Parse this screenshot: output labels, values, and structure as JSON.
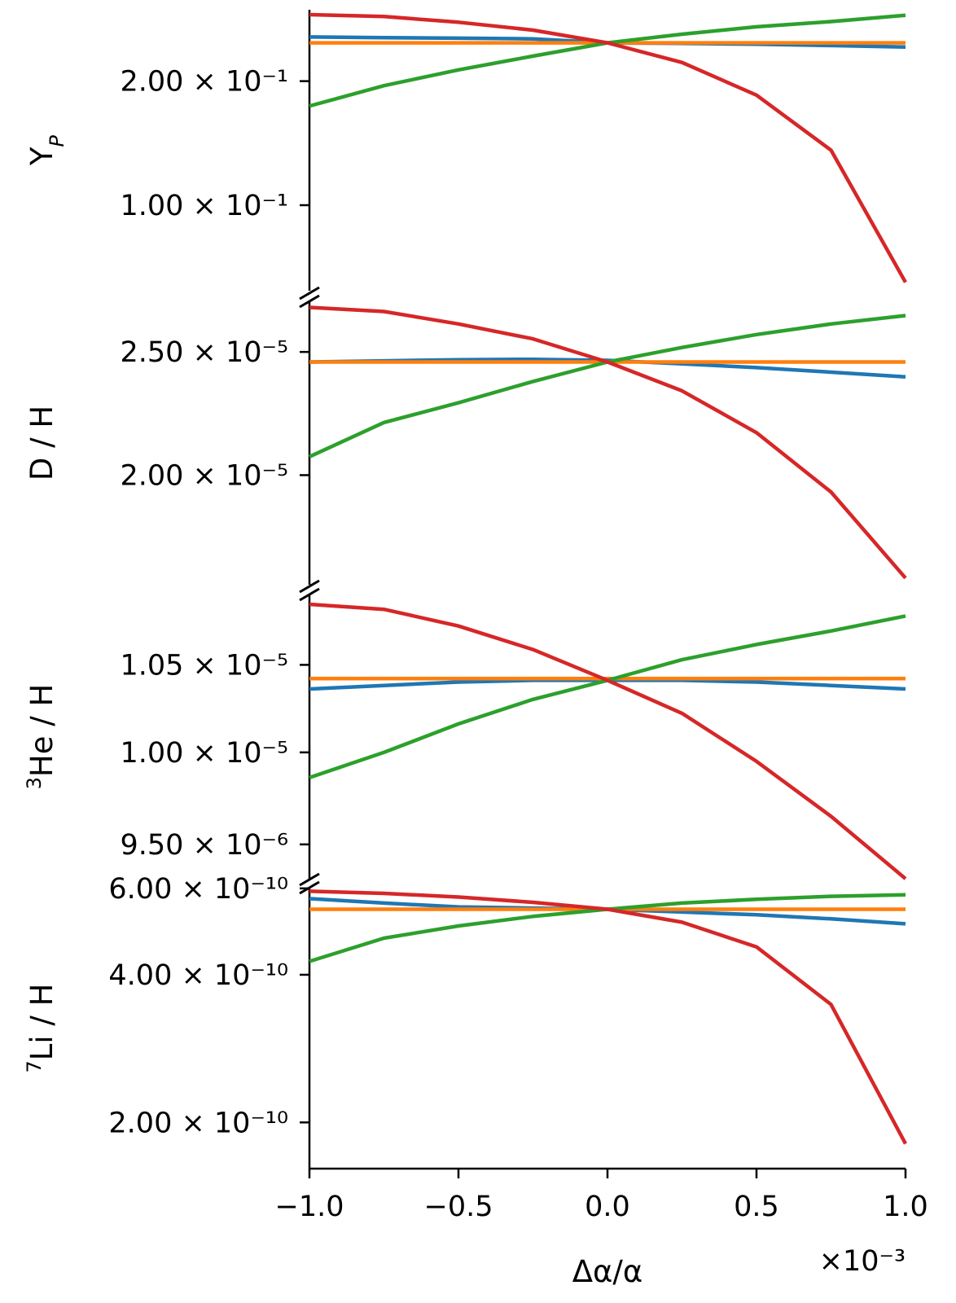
{
  "chart_data": {
    "type": "line",
    "x_label": "Δα/α",
    "x_multiplier": "×10⁻³",
    "x_range": [
      -1.0,
      1.0
    ],
    "x_ticks": [
      "−1.0",
      "−0.5",
      "0.0",
      "0.5",
      "1.0"
    ],
    "x_tick_values": [
      -1.0,
      -0.5,
      0.0,
      0.5,
      1.0
    ],
    "colors": {
      "blue": "#1f77b4",
      "orange": "#ff7f0e",
      "green": "#2ca02c",
      "red": "#d62728"
    },
    "x": [
      -1.0,
      -0.75,
      -0.5,
      -0.25,
      0.0,
      0.25,
      0.5,
      0.75,
      1.0
    ],
    "panels": [
      {
        "ylabel": "Y",
        "ylabel_sub": "P",
        "ylim": [
          0.062,
          0.298
        ],
        "y_ticks": [
          {
            "value": 0.2,
            "label": "2.00 × 10⁻¹"
          },
          {
            "value": 0.1,
            "label": "1.00 × 10⁻¹"
          }
        ],
        "series": [
          {
            "color": "#1f77b4",
            "values": [
              0.256,
              0.2551,
              0.2542,
              0.2533,
              0.2477,
              0.247,
              0.2458,
              0.244,
              0.242
            ]
          },
          {
            "color": "#ff7f0e",
            "values": [
              0.2477,
              0.2477,
              0.2477,
              0.2477,
              0.2477,
              0.2477,
              0.2477,
              0.2477,
              0.2477
            ]
          },
          {
            "color": "#2ca02c",
            "values": [
              0.174,
              0.195,
              0.213,
              0.23,
              0.2477,
              0.26,
              0.271,
              0.279,
              0.289
            ]
          },
          {
            "color": "#d62728",
            "values": [
              0.29,
              0.287,
              0.278,
              0.266,
              0.2477,
              0.222,
              0.185,
              0.136,
              0.065
            ]
          }
        ]
      },
      {
        "ylabel": "D / H",
        "ylim": [
          1.64e-05,
          2.74e-05
        ],
        "y_ticks": [
          {
            "value": 2.5e-05,
            "label": "2.50 × 10⁻⁵"
          },
          {
            "value": 2e-05,
            "label": "2.00 × 10⁻⁵"
          }
        ],
        "series": [
          {
            "color": "#1f77b4",
            "values": [
              2.455e-05,
              2.46e-05,
              2.465e-05,
              2.467e-05,
              2.462e-05,
              2.447e-05,
              2.43e-05,
              2.41e-05,
              2.39e-05
            ]
          },
          {
            "color": "#ff7f0e",
            "values": [
              2.455e-05,
              2.455e-05,
              2.455e-05,
              2.455e-05,
              2.455e-05,
              2.455e-05,
              2.455e-05,
              2.455e-05,
              2.455e-05
            ]
          },
          {
            "color": "#2ca02c",
            "values": [
              2.068e-05,
              2.2e-05,
              2.28e-05,
              2.37e-05,
              2.455e-05,
              2.52e-05,
              2.58e-05,
              2.63e-05,
              2.67e-05
            ]
          },
          {
            "color": "#d62728",
            "values": [
              2.71e-05,
              2.69e-05,
              2.63e-05,
              2.56e-05,
              2.455e-05,
              2.33e-05,
              2.16e-05,
              1.94e-05,
              1.66e-05
            ]
          }
        ]
      },
      {
        "ylabel": "He / H",
        "ylabel_sup": "3",
        "ylim": [
          9.32e-06,
          1.092e-05
        ],
        "y_ticks": [
          {
            "value": 1.05e-05,
            "label": "1.05 × 10⁻⁵"
          },
          {
            "value": 1e-05,
            "label": "1.00 × 10⁻⁵"
          },
          {
            "value": 9.5e-06,
            "label": "9.50 × 10⁻⁶"
          }
        ],
        "series": [
          {
            "color": "#1f77b4",
            "values": [
              1.036e-05,
              1.038e-05,
              1.04e-05,
              1.041e-05,
              1.041e-05,
              1.041e-05,
              1.04e-05,
              1.038e-05,
              1.036e-05
            ]
          },
          {
            "color": "#ff7f0e",
            "values": [
              1.042e-05,
              1.042e-05,
              1.042e-05,
              1.042e-05,
              1.042e-05,
              1.042e-05,
              1.042e-05,
              1.042e-05,
              1.042e-05
            ]
          },
          {
            "color": "#2ca02c",
            "values": [
              9.86e-06,
              1e-05,
              1.016e-05,
              1.03e-05,
              1.041e-05,
              1.053e-05,
              1.062e-05,
              1.07e-05,
              1.079e-05
            ]
          },
          {
            "color": "#d62728",
            "values": [
              1.086e-05,
              1.083e-05,
              1.073e-05,
              1.059e-05,
              1.041e-05,
              1.022e-05,
              9.95e-06,
              9.65e-06,
              9.3e-06
            ]
          }
        ]
      },
      {
        "ylabel": "Li / H",
        "ylabel_sup": "7",
        "ylim": [
          1.61e-10,
          6.02e-10
        ],
        "y_ticks": [
          {
            "value": 6e-10,
            "label": "6.00 × 10⁻¹⁰"
          },
          {
            "value": 4e-10,
            "label": "4.00 × 10⁻¹⁰"
          },
          {
            "value": 2e-10,
            "label": "2.00 × 10⁻¹⁰"
          }
        ],
        "series": [
          {
            "color": "#1f77b4",
            "values": [
              5.72e-10,
              5.6e-10,
              5.5e-10,
              5.47e-10,
              5.44e-10,
              5.37e-10,
              5.3e-10,
              5.2e-10,
              5.08e-10
            ]
          },
          {
            "color": "#ff7f0e",
            "values": [
              5.44e-10,
              5.44e-10,
              5.44e-10,
              5.44e-10,
              5.44e-10,
              5.44e-10,
              5.44e-10,
              5.44e-10,
              5.44e-10
            ]
          },
          {
            "color": "#2ca02c",
            "values": [
              4.26e-10,
              4.75e-10,
              5.03e-10,
              5.26e-10,
              5.44e-10,
              5.6e-10,
              5.7e-10,
              5.78e-10,
              5.82e-10
            ]
          },
          {
            "color": "#d62728",
            "values": [
              5.92e-10,
              5.86e-10,
              5.76e-10,
              5.62e-10,
              5.44e-10,
              5.12e-10,
              4.56e-10,
              3.48e-10,
              1.81e-10
            ]
          }
        ]
      }
    ]
  }
}
